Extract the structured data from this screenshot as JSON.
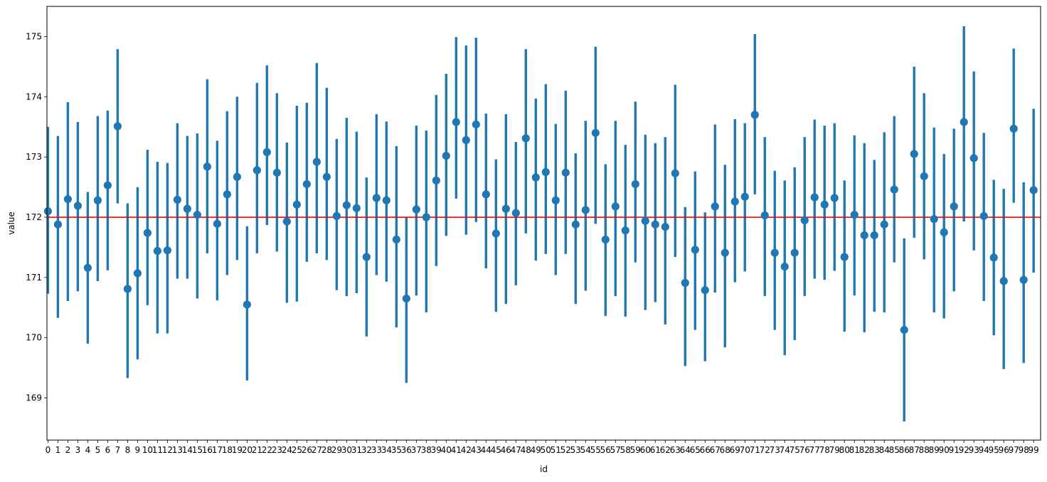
{
  "chart_data": {
    "type": "scatter",
    "kind": "pointplot-with-error-bars",
    "xlabel": "id",
    "ylabel": "value",
    "ylim": [
      168.3,
      175.5
    ],
    "yticks": [
      169,
      170,
      171,
      172,
      173,
      174,
      175
    ],
    "reference_line": {
      "y": 172,
      "color": "#ff0000"
    },
    "point_color": "#1f77b4",
    "grid": false,
    "legend": "none",
    "categories": [
      "0",
      "1",
      "2",
      "3",
      "4",
      "5",
      "6",
      "7",
      "8",
      "9",
      "10",
      "11",
      "12",
      "13",
      "14",
      "15",
      "16",
      "17",
      "18",
      "19",
      "20",
      "21",
      "22",
      "23",
      "24",
      "25",
      "26",
      "27",
      "28",
      "29",
      "30",
      "31",
      "32",
      "33",
      "34",
      "35",
      "36",
      "37",
      "38",
      "39",
      "40",
      "41",
      "42",
      "43",
      "44",
      "45",
      "46",
      "47",
      "48",
      "49",
      "50",
      "51",
      "52",
      "53",
      "54",
      "55",
      "56",
      "57",
      "58",
      "59",
      "60",
      "61",
      "62",
      "63",
      "64",
      "65",
      "66",
      "67",
      "68",
      "69",
      "70",
      "71",
      "72",
      "73",
      "74",
      "75",
      "76",
      "77",
      "78",
      "79",
      "80",
      "81",
      "82",
      "83",
      "84",
      "85",
      "86",
      "87",
      "88",
      "89",
      "90",
      "91",
      "92",
      "93",
      "94",
      "95",
      "96",
      "97",
      "98",
      "99"
    ],
    "points": [
      {
        "mean": 172.1,
        "low": 170.73,
        "high": 173.5
      },
      {
        "mean": 171.88,
        "low": 170.33,
        "high": 173.35
      },
      {
        "mean": 172.3,
        "low": 170.61,
        "high": 173.91
      },
      {
        "mean": 172.19,
        "low": 170.77,
        "high": 173.58
      },
      {
        "mean": 171.16,
        "low": 169.9,
        "high": 172.42
      },
      {
        "mean": 172.28,
        "low": 170.94,
        "high": 173.68
      },
      {
        "mean": 172.53,
        "low": 171.12,
        "high": 173.77
      },
      {
        "mean": 173.51,
        "low": 172.23,
        "high": 174.79
      },
      {
        "mean": 170.81,
        "low": 169.33,
        "high": 172.23
      },
      {
        "mean": 171.07,
        "low": 169.64,
        "high": 172.5
      },
      {
        "mean": 171.74,
        "low": 170.54,
        "high": 173.12
      },
      {
        "mean": 171.44,
        "low": 170.07,
        "high": 172.92
      },
      {
        "mean": 171.45,
        "low": 170.07,
        "high": 172.9
      },
      {
        "mean": 172.29,
        "low": 170.98,
        "high": 173.56
      },
      {
        "mean": 172.14,
        "low": 170.98,
        "high": 173.35
      },
      {
        "mean": 172.04,
        "low": 170.65,
        "high": 173.39
      },
      {
        "mean": 172.84,
        "low": 171.4,
        "high": 174.29
      },
      {
        "mean": 171.89,
        "low": 170.62,
        "high": 173.27
      },
      {
        "mean": 172.38,
        "low": 171.04,
        "high": 173.76
      },
      {
        "mean": 172.67,
        "low": 171.29,
        "high": 174.0
      },
      {
        "mean": 170.55,
        "low": 169.29,
        "high": 171.85
      },
      {
        "mean": 172.78,
        "low": 171.4,
        "high": 174.23
      },
      {
        "mean": 173.08,
        "low": 171.87,
        "high": 174.52
      },
      {
        "mean": 172.74,
        "low": 171.43,
        "high": 174.06
      },
      {
        "mean": 171.93,
        "low": 170.58,
        "high": 173.24
      },
      {
        "mean": 172.21,
        "low": 170.6,
        "high": 173.85
      },
      {
        "mean": 172.55,
        "low": 171.26,
        "high": 173.9
      },
      {
        "mean": 172.92,
        "low": 171.4,
        "high": 174.56
      },
      {
        "mean": 172.67,
        "low": 171.29,
        "high": 174.15
      },
      {
        "mean": 172.02,
        "low": 170.79,
        "high": 173.3
      },
      {
        "mean": 172.2,
        "low": 170.69,
        "high": 173.65
      },
      {
        "mean": 172.15,
        "low": 170.74,
        "high": 173.42
      },
      {
        "mean": 171.34,
        "low": 170.02,
        "high": 172.66
      },
      {
        "mean": 172.32,
        "low": 171.04,
        "high": 173.71
      },
      {
        "mean": 172.28,
        "low": 170.93,
        "high": 173.59
      },
      {
        "mean": 171.63,
        "low": 170.17,
        "high": 173.18
      },
      {
        "mean": 170.65,
        "low": 169.25,
        "high": 172.0
      },
      {
        "mean": 172.13,
        "low": 170.7,
        "high": 173.52
      },
      {
        "mean": 172.0,
        "low": 170.42,
        "high": 173.44
      },
      {
        "mean": 172.61,
        "low": 171.19,
        "high": 174.03
      },
      {
        "mean": 173.02,
        "low": 171.69,
        "high": 174.38
      },
      {
        "mean": 173.58,
        "low": 172.31,
        "high": 174.99
      },
      {
        "mean": 173.28,
        "low": 171.71,
        "high": 174.85
      },
      {
        "mean": 173.54,
        "low": 171.92,
        "high": 174.98
      },
      {
        "mean": 172.38,
        "low": 171.15,
        "high": 173.72
      },
      {
        "mean": 171.73,
        "low": 170.43,
        "high": 172.96
      },
      {
        "mean": 172.14,
        "low": 170.56,
        "high": 173.71
      },
      {
        "mean": 172.07,
        "low": 170.87,
        "high": 173.25
      },
      {
        "mean": 173.31,
        "low": 171.73,
        "high": 174.79
      },
      {
        "mean": 172.66,
        "low": 171.28,
        "high": 173.97
      },
      {
        "mean": 172.75,
        "low": 171.39,
        "high": 174.21
      },
      {
        "mean": 172.28,
        "low": 171.04,
        "high": 173.55
      },
      {
        "mean": 172.74,
        "low": 171.39,
        "high": 174.1
      },
      {
        "mean": 171.88,
        "low": 170.56,
        "high": 173.06
      },
      {
        "mean": 172.12,
        "low": 170.78,
        "high": 173.6
      },
      {
        "mean": 173.4,
        "low": 171.89,
        "high": 174.83
      },
      {
        "mean": 171.63,
        "low": 170.36,
        "high": 172.88
      },
      {
        "mean": 172.18,
        "low": 170.69,
        "high": 173.6
      },
      {
        "mean": 171.78,
        "low": 170.35,
        "high": 173.2
      },
      {
        "mean": 172.55,
        "low": 171.25,
        "high": 173.92
      },
      {
        "mean": 171.94,
        "low": 170.46,
        "high": 173.37
      },
      {
        "mean": 171.88,
        "low": 170.59,
        "high": 173.23
      },
      {
        "mean": 171.84,
        "low": 170.22,
        "high": 173.33
      },
      {
        "mean": 172.73,
        "low": 171.34,
        "high": 174.2
      },
      {
        "mean": 170.91,
        "low": 169.53,
        "high": 172.17
      },
      {
        "mean": 171.46,
        "low": 170.13,
        "high": 172.76
      },
      {
        "mean": 170.79,
        "low": 169.61,
        "high": 172.08
      },
      {
        "mean": 172.18,
        "low": 170.75,
        "high": 173.54
      },
      {
        "mean": 171.41,
        "low": 169.84,
        "high": 172.87
      },
      {
        "mean": 172.26,
        "low": 170.92,
        "high": 173.63
      },
      {
        "mean": 172.34,
        "low": 171.1,
        "high": 173.56
      },
      {
        "mean": 173.7,
        "low": 172.38,
        "high": 175.04
      },
      {
        "mean": 172.03,
        "low": 170.69,
        "high": 173.33
      },
      {
        "mean": 171.41,
        "low": 170.13,
        "high": 172.77
      },
      {
        "mean": 171.18,
        "low": 169.71,
        "high": 172.61
      },
      {
        "mean": 171.41,
        "low": 169.96,
        "high": 172.83
      },
      {
        "mean": 171.95,
        "low": 170.69,
        "high": 173.33
      },
      {
        "mean": 172.33,
        "low": 170.98,
        "high": 173.62
      },
      {
        "mean": 172.21,
        "low": 170.96,
        "high": 173.52
      },
      {
        "mean": 172.32,
        "low": 171.11,
        "high": 173.56
      },
      {
        "mean": 171.34,
        "low": 170.1,
        "high": 172.61
      },
      {
        "mean": 172.04,
        "low": 170.7,
        "high": 173.36
      },
      {
        "mean": 171.7,
        "low": 170.09,
        "high": 173.23
      },
      {
        "mean": 171.7,
        "low": 170.43,
        "high": 172.95
      },
      {
        "mean": 171.88,
        "low": 170.42,
        "high": 173.41
      },
      {
        "mean": 172.46,
        "low": 171.25,
        "high": 173.68
      },
      {
        "mean": 170.13,
        "low": 168.61,
        "high": 171.65
      },
      {
        "mean": 173.05,
        "low": 171.66,
        "high": 174.5
      },
      {
        "mean": 172.68,
        "low": 171.3,
        "high": 174.06
      },
      {
        "mean": 171.97,
        "low": 170.42,
        "high": 173.49
      },
      {
        "mean": 171.75,
        "low": 170.32,
        "high": 173.05
      },
      {
        "mean": 172.18,
        "low": 170.77,
        "high": 173.47
      },
      {
        "mean": 173.58,
        "low": 171.93,
        "high": 175.17
      },
      {
        "mean": 172.98,
        "low": 171.45,
        "high": 174.42
      },
      {
        "mean": 172.02,
        "low": 170.61,
        "high": 173.4
      },
      {
        "mean": 171.33,
        "low": 170.04,
        "high": 172.62
      },
      {
        "mean": 170.94,
        "low": 169.48,
        "high": 172.47
      },
      {
        "mean": 173.47,
        "low": 172.24,
        "high": 174.8
      },
      {
        "mean": 170.96,
        "low": 169.58,
        "high": 172.58
      },
      {
        "mean": 172.45,
        "low": 171.08,
        "high": 173.8
      }
    ]
  }
}
